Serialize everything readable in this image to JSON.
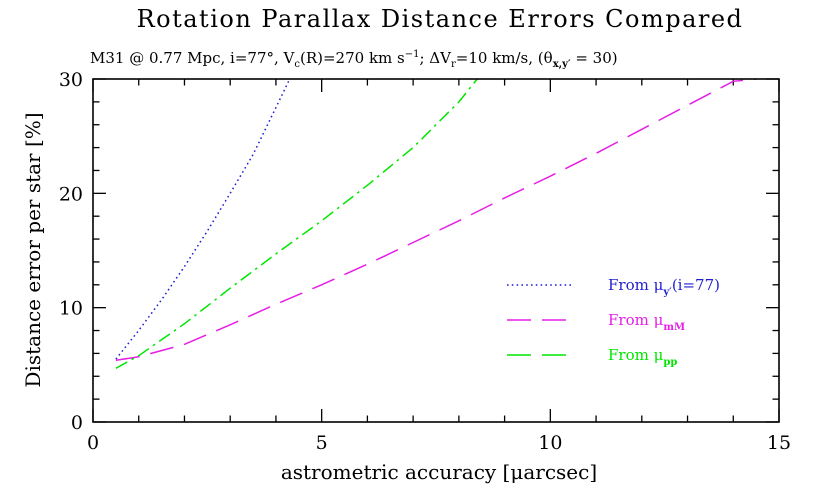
{
  "chart_data": {
    "type": "line",
    "title": "Rotation Parallax Distance Errors Compared",
    "subtitle": {
      "seg1": "M31 @ 0.77 Mpc,  i=77°,  V",
      "seg1_sub": "c",
      "seg2": "(R)=270 km s",
      "seg2_sup": "−1",
      "seg3": ";  ΔV",
      "seg3_sub": "r",
      "seg4": "=10 km/s,   (θ",
      "seg4_sub": "x,y′",
      "seg5": " = 30)"
    },
    "xlabel": "astrometric accuracy [μarcsec]",
    "ylabel": "Distance error per star [%]",
    "xlim": [
      0,
      15
    ],
    "ylim": [
      0,
      30
    ],
    "xticks": [
      0,
      5,
      10,
      15
    ],
    "yticks": [
      0,
      10,
      20,
      30
    ],
    "grid": false,
    "legend_position": "center-right",
    "series": [
      {
        "name": "From μy′(i=77)",
        "label_main": "From μ",
        "label_sub": "y′",
        "label_tail": "(i=77)",
        "color": "#1f1fd2",
        "dash": "dotted",
        "x": [
          0.5,
          1.0,
          1.5,
          2.0,
          2.5,
          3.0,
          3.5,
          4.0,
          4.3
        ],
        "y": [
          5.5,
          8.0,
          10.7,
          13.6,
          16.7,
          20.0,
          23.4,
          27.5,
          30.0
        ]
      },
      {
        "name": "From μmM",
        "label_main": "From μ",
        "label_sub": "mM",
        "label_tail": "",
        "color": "#e61ee6",
        "dash": "long-dash",
        "x": [
          0.5,
          1.0,
          2.0,
          3.0,
          4.0,
          5.0,
          6.0,
          7.0,
          8.0,
          9.0,
          10.0,
          11.0,
          12.0,
          13.0,
          14.0,
          14.5
        ],
        "y": [
          5.4,
          5.7,
          6.8,
          8.5,
          10.3,
          12.0,
          13.8,
          15.7,
          17.6,
          19.6,
          21.5,
          23.5,
          25.6,
          27.7,
          29.8,
          30.0
        ]
      },
      {
        "name": "From μpp",
        "label_main": "From μ",
        "label_sub": "pp",
        "label_tail": "",
        "color": "#00e600",
        "dash": "dash-dot",
        "x": [
          0.5,
          1.0,
          2.0,
          3.0,
          4.0,
          5.0,
          6.0,
          7.0,
          8.0,
          8.4
        ],
        "y": [
          4.7,
          5.8,
          8.6,
          11.7,
          14.7,
          17.6,
          20.7,
          24.0,
          28.0,
          30.0
        ]
      }
    ]
  }
}
